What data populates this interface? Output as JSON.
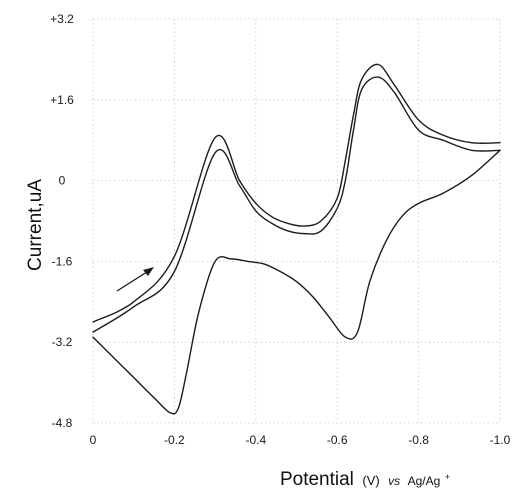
{
  "chart_data": {
    "type": "line",
    "xlabel_main": "Potential",
    "xlabel_unit": "(V)",
    "xlabel_ref_vs": "vs",
    "xlabel_ref": "Ag/Ag",
    "xlabel_ref_sup": "+",
    "ylabel": "Current,uA",
    "xlim": [
      0,
      -1.0
    ],
    "ylim": [
      -4.8,
      3.2
    ],
    "x_ticks": [
      {
        "value": 0,
        "label": "0"
      },
      {
        "value": -0.2,
        "label": "-0.2"
      },
      {
        "value": -0.4,
        "label": "-0.4"
      },
      {
        "value": -0.6,
        "label": "-0.6"
      },
      {
        "value": -0.8,
        "label": "-0.8"
      },
      {
        "value": -1.0,
        "label": "-1.0"
      }
    ],
    "y_ticks": [
      {
        "value": 3.2,
        "label": "+3.2"
      },
      {
        "value": 1.6,
        "label": "+1.6"
      },
      {
        "value": 0,
        "label": "0"
      },
      {
        "value": -1.6,
        "label": "-1.6"
      },
      {
        "value": -3.2,
        "label": "-3.2"
      },
      {
        "value": -4.8,
        "label": "-4.8"
      }
    ],
    "grid": true,
    "line_color": "#1c1c1c",
    "series": [
      {
        "x": [
          0,
          -0.1,
          -0.2,
          -0.3,
          -0.36,
          -0.4,
          -0.44,
          -0.48,
          -0.52,
          -0.56,
          -0.6,
          -0.62,
          -0.64,
          -0.66,
          -0.7,
          -0.74,
          -0.8,
          -0.86,
          -0.93,
          -1.0
        ],
        "y": [
          -2.8,
          -2.4,
          -1.5,
          0.85,
          0.0,
          -0.45,
          -0.72,
          -0.85,
          -0.9,
          -0.8,
          -0.35,
          0.4,
          1.3,
          2.0,
          2.3,
          1.9,
          1.2,
          0.9,
          0.75,
          0.75
        ]
      },
      {
        "x": [
          -1.0,
          -0.93,
          -0.86,
          -0.8,
          -0.74,
          -0.7,
          -0.66,
          -0.64,
          -0.62,
          -0.6,
          -0.56,
          -0.52,
          -0.48,
          -0.44,
          -0.4,
          -0.36,
          -0.3,
          -0.2,
          -0.1,
          0
        ],
        "y": [
          0.6,
          0.6,
          0.8,
          1.0,
          1.75,
          2.05,
          1.8,
          1.0,
          0.0,
          -0.55,
          -1.0,
          -1.05,
          -1.0,
          -0.85,
          -0.6,
          -0.1,
          0.55,
          -1.8,
          -2.5,
          -3.0
        ]
      },
      {
        "x": [
          0,
          -0.05,
          -0.1,
          -0.15,
          -0.19,
          -0.21,
          -0.23,
          -0.26,
          -0.3,
          -0.34,
          -0.38,
          -0.42,
          -0.46,
          -0.5,
          -0.54,
          -0.58,
          -0.62,
          -0.65,
          -0.68,
          -0.72,
          -0.76,
          -0.8,
          -0.86,
          -0.93,
          -1.0
        ],
        "y": [
          -3.1,
          -3.5,
          -3.9,
          -4.3,
          -4.6,
          -4.5,
          -3.8,
          -2.6,
          -1.6,
          -1.55,
          -1.6,
          -1.65,
          -1.8,
          -2.0,
          -2.3,
          -2.7,
          -3.1,
          -3.0,
          -2.0,
          -1.2,
          -0.7,
          -0.45,
          -0.25,
          0.1,
          0.6
        ]
      }
    ]
  }
}
